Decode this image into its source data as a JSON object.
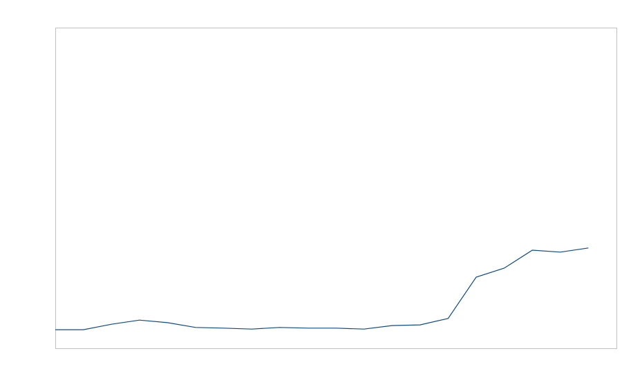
{
  "chart_data": {
    "type": "line",
    "title": "",
    "xlabel": "",
    "ylabel": "",
    "x": [
      1,
      2,
      3,
      4,
      5,
      6,
      7,
      8,
      9,
      10,
      11,
      12,
      13,
      14,
      15,
      16,
      17,
      18,
      19,
      20
    ],
    "series": [
      {
        "values": [
          5.8,
          5.8,
          7.5,
          8.8,
          8.0,
          6.5,
          6.3,
          6.0,
          6.5,
          6.3,
          6.3,
          6.0,
          7.1,
          7.3,
          9.3,
          22.2,
          25.0,
          30.6,
          30.0,
          31.3
        ]
      }
    ],
    "xlim": [
      1,
      21
    ],
    "ylim": [
      0,
      100
    ],
    "grid": false,
    "axis_ticks_shown": false,
    "colors": {
      "line": "#0b4a8b",
      "frame": "#c0c0c0"
    }
  }
}
